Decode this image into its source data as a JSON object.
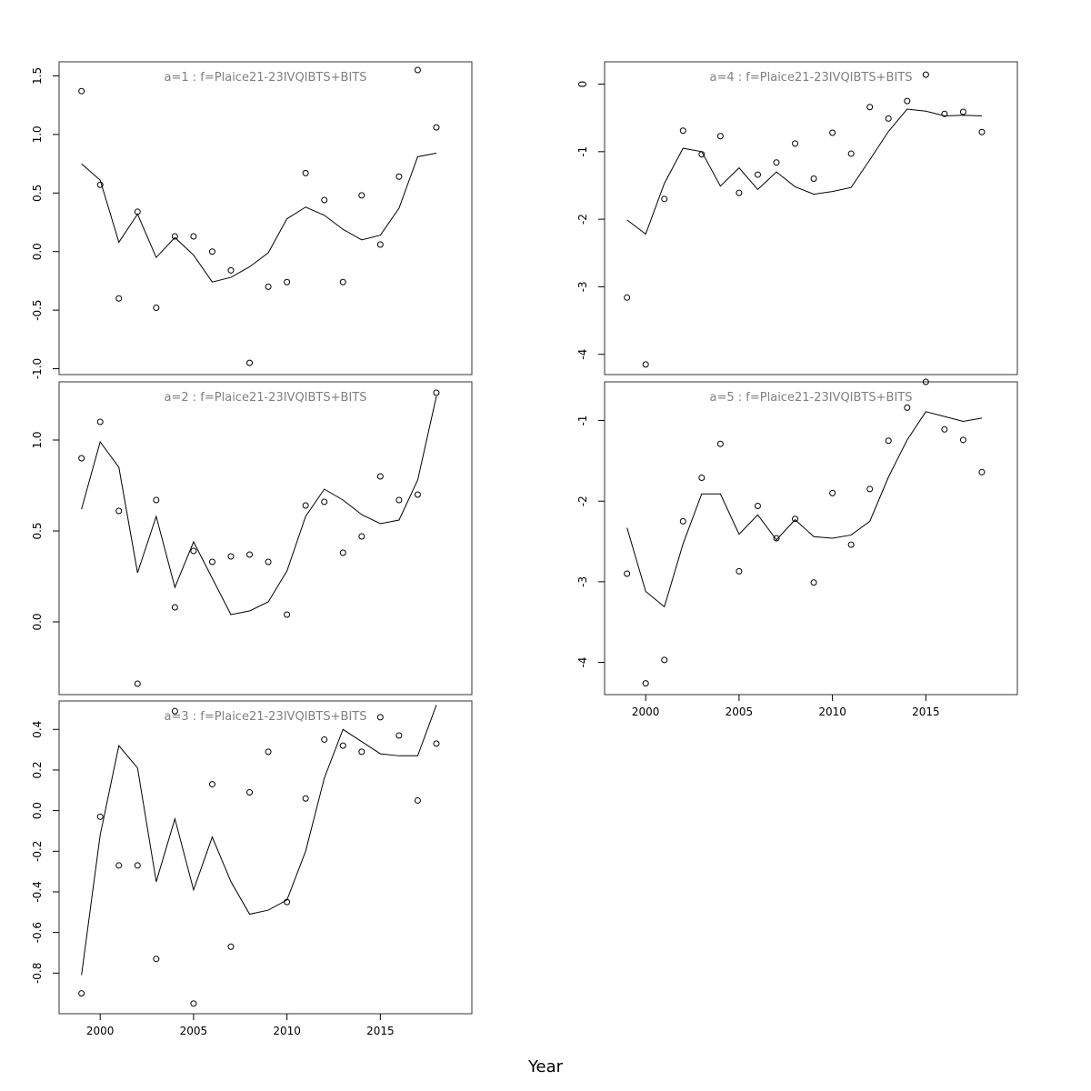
{
  "figure": {
    "xlabel": "Year"
  },
  "chart_data": [
    {
      "type": "line",
      "title": "a=1  :  f=Plaice21-23IVQIBTS+BITS",
      "xlim": [
        1997.8,
        2019.9
      ],
      "ylim": [
        -1.05,
        1.62
      ],
      "yticks": [
        -1.0,
        -0.5,
        0.0,
        0.5,
        1.0,
        1.5
      ],
      "ytick_labels": [
        "-1.0",
        "-0.5",
        "0.0",
        "0.5",
        "1.0",
        "1.5"
      ],
      "xticks": [],
      "xtick_labels": [],
      "x": [
        1999,
        2000,
        2001,
        2002,
        2003,
        2004,
        2005,
        2006,
        2007,
        2008,
        2009,
        2010,
        2011,
        2012,
        2013,
        2014,
        2015,
        2016,
        2017,
        2018
      ],
      "series": [
        {
          "kind": "points",
          "values": [
            1.37,
            0.57,
            -0.4,
            0.34,
            -0.48,
            0.13,
            0.13,
            0.0,
            -0.16,
            -0.95,
            -0.3,
            -0.26,
            0.67,
            0.44,
            -0.26,
            0.48,
            0.06,
            0.64,
            1.55,
            1.06
          ]
        },
        {
          "kind": "line",
          "values": [
            0.75,
            0.61,
            0.08,
            0.32,
            -0.05,
            0.12,
            -0.03,
            -0.26,
            -0.22,
            -0.13,
            -0.01,
            0.28,
            0.38,
            0.31,
            0.19,
            0.1,
            0.14,
            0.37,
            0.81,
            0.84
          ]
        }
      ]
    },
    {
      "type": "line",
      "title": "a=2  :  f=Plaice21-23IVQIBTS+BITS",
      "xlim": [
        1997.8,
        2019.9
      ],
      "ylim": [
        -0.4,
        1.32
      ],
      "yticks": [
        0.0,
        0.5,
        1.0
      ],
      "ytick_labels": [
        "0.0",
        "0.5",
        "1.0"
      ],
      "xticks": [],
      "xtick_labels": [],
      "x": [
        1999,
        2000,
        2001,
        2002,
        2003,
        2004,
        2005,
        2006,
        2007,
        2008,
        2009,
        2010,
        2011,
        2012,
        2013,
        2014,
        2015,
        2016,
        2017,
        2018
      ],
      "series": [
        {
          "kind": "points",
          "values": [
            0.9,
            1.1,
            0.61,
            -0.34,
            0.67,
            0.08,
            0.39,
            0.33,
            0.36,
            0.37,
            0.33,
            0.04,
            0.64,
            0.66,
            0.38,
            0.47,
            0.8,
            0.67,
            0.7,
            1.26
          ]
        },
        {
          "kind": "line",
          "values": [
            0.62,
            0.99,
            0.85,
            0.27,
            0.58,
            0.19,
            0.44,
            0.24,
            0.04,
            0.06,
            0.11,
            0.28,
            0.58,
            0.73,
            0.67,
            0.59,
            0.54,
            0.56,
            0.78,
            1.24
          ]
        }
      ]
    },
    {
      "type": "line",
      "title": "a=3  :  f=Plaice21-23IVQIBTS+BITS",
      "xlim": [
        1997.8,
        2019.9
      ],
      "ylim": [
        -1.0,
        0.54
      ],
      "yticks": [
        -0.8,
        -0.6,
        -0.4,
        -0.2,
        0.0,
        0.2,
        0.4
      ],
      "ytick_labels": [
        "-0.8",
        "-0.6",
        "-0.4",
        "-0.2",
        "0.0",
        "0.2",
        "0.4"
      ],
      "xticks": [
        2000,
        2005,
        2010,
        2015
      ],
      "xtick_labels": [
        "2000",
        "2005",
        "2010",
        "2015"
      ],
      "x": [
        1999,
        2000,
        2001,
        2002,
        2003,
        2004,
        2005,
        2006,
        2007,
        2008,
        2009,
        2010,
        2011,
        2012,
        2013,
        2014,
        2015,
        2016,
        2017,
        2018
      ],
      "series": [
        {
          "kind": "points",
          "values": [
            -0.9,
            -0.03,
            -0.27,
            -0.27,
            -0.73,
            0.49,
            -0.95,
            0.13,
            -0.67,
            0.09,
            0.29,
            -0.45,
            0.06,
            0.35,
            0.32,
            0.29,
            0.46,
            0.37,
            0.05,
            0.33
          ]
        },
        {
          "kind": "line",
          "values": [
            -0.81,
            -0.12,
            0.32,
            0.21,
            -0.35,
            -0.04,
            -0.39,
            -0.13,
            -0.35,
            -0.51,
            -0.49,
            -0.44,
            -0.2,
            0.16,
            0.4,
            0.34,
            0.28,
            0.27,
            0.27,
            0.52
          ]
        }
      ]
    },
    {
      "type": "line",
      "title": "a=4  :  f=Plaice21-23IVQIBTS+BITS",
      "xlim": [
        1997.8,
        2019.9
      ],
      "ylim": [
        -4.3,
        0.33
      ],
      "yticks": [
        -4,
        -3,
        -2,
        -1,
        0
      ],
      "ytick_labels": [
        "-4",
        "-3",
        "-2",
        "-1",
        "0"
      ],
      "xticks": [],
      "xtick_labels": [],
      "x": [
        1999,
        2000,
        2001,
        2002,
        2003,
        2004,
        2005,
        2006,
        2007,
        2008,
        2009,
        2010,
        2011,
        2012,
        2013,
        2014,
        2015,
        2016,
        2017,
        2018
      ],
      "series": [
        {
          "kind": "points",
          "values": [
            -3.16,
            -4.15,
            -1.7,
            -0.69,
            -1.04,
            -0.77,
            -1.61,
            -1.34,
            -1.16,
            -0.88,
            -1.4,
            -0.72,
            -1.03,
            -0.34,
            -0.51,
            -0.25,
            0.14,
            -0.44,
            -0.41,
            -0.71
          ]
        },
        {
          "kind": "line",
          "values": [
            -2.01,
            -2.22,
            -1.47,
            -0.95,
            -1.0,
            -1.51,
            -1.24,
            -1.56,
            -1.3,
            -1.52,
            -1.63,
            -1.59,
            -1.53,
            -1.12,
            -0.7,
            -0.37,
            -0.4,
            -0.47,
            -0.46,
            -0.47
          ]
        }
      ]
    },
    {
      "type": "line",
      "title": "a=5  :  f=Plaice21-23IVQIBTS+BITS",
      "xlim": [
        1997.8,
        2019.9
      ],
      "ylim": [
        -4.4,
        -0.52
      ],
      "yticks": [
        -4,
        -3,
        -2,
        -1
      ],
      "ytick_labels": [
        "-4",
        "-3",
        "-2",
        "-1"
      ],
      "xticks": [
        2000,
        2005,
        2010,
        2015
      ],
      "xtick_labels": [
        "2000",
        "2005",
        "2010",
        "2015"
      ],
      "x": [
        1999,
        2000,
        2001,
        2002,
        2003,
        2004,
        2005,
        2006,
        2007,
        2008,
        2009,
        2010,
        2011,
        2012,
        2013,
        2014,
        2015,
        2016,
        2017,
        2018
      ],
      "series": [
        {
          "kind": "points",
          "values": [
            -2.9,
            -4.26,
            -3.97,
            -2.25,
            -1.71,
            -1.29,
            -2.87,
            -2.06,
            -2.46,
            -2.22,
            -3.01,
            -1.9,
            -2.54,
            -1.85,
            -1.25,
            -0.84,
            -0.52,
            -1.11,
            -1.24,
            -1.64
          ]
        },
        {
          "kind": "line",
          "values": [
            -2.33,
            -3.12,
            -3.31,
            -2.53,
            -1.91,
            -1.91,
            -2.41,
            -2.17,
            -2.48,
            -2.23,
            -2.44,
            -2.46,
            -2.42,
            -2.25,
            -1.7,
            -1.24,
            -0.89,
            -0.95,
            -1.01,
            -0.97
          ]
        }
      ]
    }
  ]
}
